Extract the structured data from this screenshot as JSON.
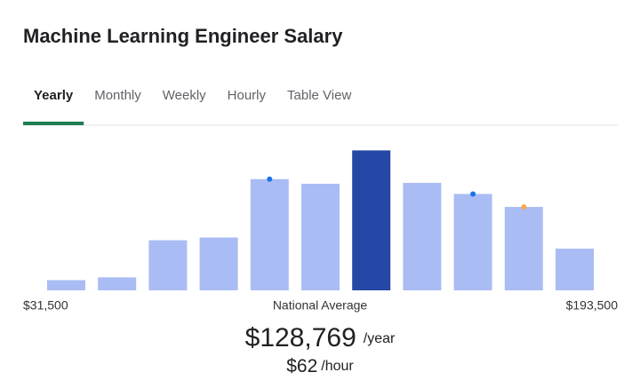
{
  "title": "Machine Learning Engineer Salary",
  "tabs": [
    {
      "label": "Yearly",
      "active": true
    },
    {
      "label": "Monthly",
      "active": false
    },
    {
      "label": "Weekly",
      "active": false
    },
    {
      "label": "Hourly",
      "active": false
    },
    {
      "label": "Table View",
      "active": false
    }
  ],
  "chart_data": {
    "type": "bar",
    "categories": [
      null,
      null,
      null,
      null,
      null,
      null,
      null,
      null,
      null,
      null,
      null
    ],
    "values": [
      11,
      14,
      54,
      57,
      120,
      115,
      151,
      116,
      104,
      90,
      45
    ],
    "colors": [
      "#aabcf4",
      "#aabcf4",
      "#aabcf4",
      "#aabcf4",
      "#aabcf4",
      "#aabcf4",
      "#2547a5",
      "#aabcf4",
      "#aabcf4",
      "#aabcf4",
      "#aabcf4"
    ],
    "markers": [
      null,
      null,
      null,
      null,
      "#1a73e8",
      null,
      null,
      null,
      "#1a73e8",
      "#f9a94b",
      null
    ],
    "ylim": [
      0,
      160
    ]
  },
  "range_labels": {
    "min": "$31,500",
    "mid": "National Average",
    "max": "$193,500"
  },
  "salary": {
    "yearly": "$128,769",
    "yearly_unit": "/year",
    "hourly": "$62",
    "hourly_unit": "/hour"
  }
}
